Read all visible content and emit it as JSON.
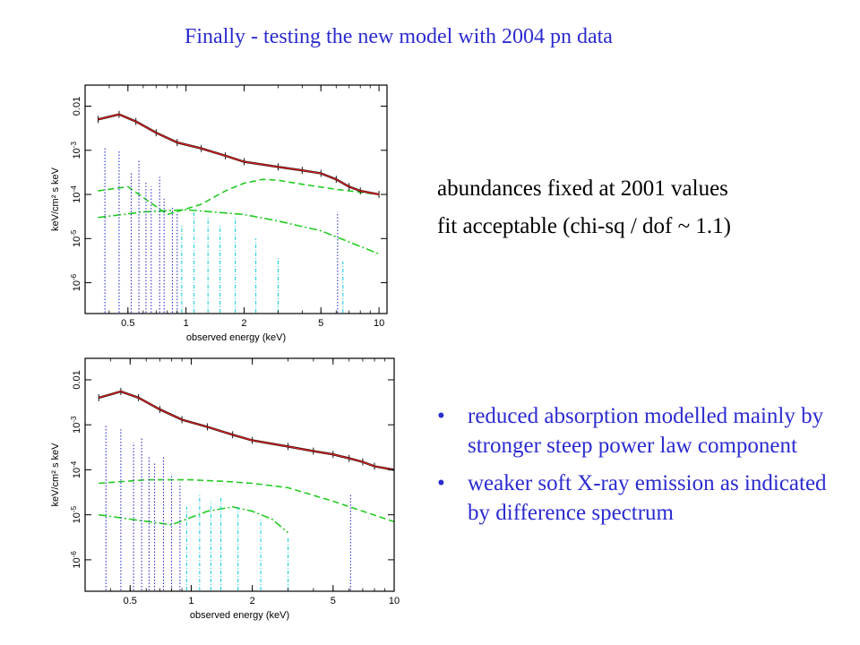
{
  "slide": {
    "title": "Finally - testing the new model with 2004 pn data",
    "fit_notes": [
      "abundances fixed at 2001 values",
      "fit acceptable (chi-sq / dof ~ 1.1)"
    ],
    "bullets": [
      "reduced absorption modelled mainly by stronger steep power law component",
      "weaker soft X-ray emission as indicated by difference spectrum"
    ],
    "bullet_glyph": "•"
  },
  "colors": {
    "data": "#000000",
    "total_model": "#e02020",
    "continuum": "#22cc22",
    "emission_lines_dotted": "#3333cc",
    "emission_lines_dashdot": "#22d0e0",
    "text_blue": "#2b2bd0"
  },
  "chart_data": [
    {
      "type": "line",
      "scale": "log-log",
      "xlabel": "observed energy (keV)",
      "ylabel": "keV/cm² s keV",
      "xlim": [
        0.3,
        11
      ],
      "ylim": [
        2e-07,
        0.03
      ],
      "xticks": [
        {
          "v": 0.5,
          "l": "0.5"
        },
        {
          "v": 1,
          "l": "1"
        },
        {
          "v": 2,
          "l": "2"
        },
        {
          "v": 5,
          "l": "5"
        },
        {
          "v": 10,
          "l": "10"
        }
      ],
      "yticks": [
        {
          "v": 0.01,
          "l": "0.01",
          "sup": ""
        },
        {
          "v": 0.001,
          "l": "10",
          "sup": "-3"
        },
        {
          "v": 0.0001,
          "l": "10",
          "sup": "-4"
        },
        {
          "v": 1e-05,
          "l": "10",
          "sup": "-5"
        },
        {
          "v": 1e-06,
          "l": "10",
          "sup": "-6"
        }
      ],
      "series": [
        {
          "role": "data",
          "x": [
            0.35,
            0.45,
            0.55,
            0.7,
            0.9,
            1.2,
            1.6,
            2.0,
            3.0,
            4.0,
            5.0,
            6.0,
            7.0,
            8.0,
            10.0
          ],
          "y": [
            0.005,
            0.0065,
            0.0045,
            0.0025,
            0.0015,
            0.0011,
            0.00075,
            0.00055,
            0.00042,
            0.00035,
            0.0003,
            0.00022,
            0.00015,
            0.00012,
            0.0001
          ]
        },
        {
          "role": "total_model",
          "x": [
            0.35,
            0.45,
            0.55,
            0.7,
            0.9,
            1.2,
            1.6,
            2.0,
            3.0,
            4.0,
            5.0,
            6.0,
            7.0,
            8.0,
            10.0
          ],
          "y": [
            0.005,
            0.0065,
            0.0045,
            0.0025,
            0.0015,
            0.0011,
            0.00075,
            0.00055,
            0.00042,
            0.00035,
            0.0003,
            0.00022,
            0.00015,
            0.00012,
            0.0001
          ]
        },
        {
          "role": "continuum",
          "x": [
            0.35,
            0.5,
            0.8,
            1.2,
            1.6,
            2.0,
            2.5,
            3.0,
            4.0,
            6.0,
            10.0
          ],
          "y": [
            0.00012,
            0.00015,
            3.5e-05,
            6e-05,
            0.00012,
            0.00018,
            0.00022,
            0.00021,
            0.00017,
            0.00013,
            0.0001
          ]
        },
        {
          "role": "continuum",
          "x": [
            0.35,
            0.6,
            1.0,
            2.0,
            3.0,
            5.0,
            10.0
          ],
          "y": [
            3e-05,
            4e-05,
            4.5e-05,
            3.5e-05,
            2.5e-05,
            1.5e-05,
            4.5e-06
          ]
        }
      ],
      "lines_dotted": [
        {
          "x": 0.38,
          "y": 0.0012
        },
        {
          "x": 0.45,
          "y": 0.001
        },
        {
          "x": 0.52,
          "y": 0.0003
        },
        {
          "x": 0.57,
          "y": 0.0006
        },
        {
          "x": 0.62,
          "y": 0.0002
        },
        {
          "x": 0.66,
          "y": 0.00015
        },
        {
          "x": 0.73,
          "y": 0.00025
        },
        {
          "x": 0.77,
          "y": 8e-05
        },
        {
          "x": 0.85,
          "y": 5e-05
        },
        {
          "x": 0.9,
          "y": 4e-05
        },
        {
          "x": 6.1,
          "y": 4e-05
        }
      ],
      "lines_dashdot": [
        {
          "x": 0.95,
          "y": 2e-05
        },
        {
          "x": 1.1,
          "y": 4e-05
        },
        {
          "x": 1.3,
          "y": 3e-05
        },
        {
          "x": 1.5,
          "y": 2e-05
        },
        {
          "x": 1.8,
          "y": 3e-05
        },
        {
          "x": 2.3,
          "y": 1e-05
        },
        {
          "x": 3.0,
          "y": 4e-06
        },
        {
          "x": 6.5,
          "y": 3e-06
        }
      ]
    },
    {
      "type": "line",
      "scale": "log-log",
      "xlabel": "observed energy (keV)",
      "ylabel": "keV/cm² s keV",
      "xlim": [
        0.3,
        10
      ],
      "ylim": [
        2e-07,
        0.03
      ],
      "xticks": [
        {
          "v": 0.5,
          "l": "0.5"
        },
        {
          "v": 1,
          "l": "1"
        },
        {
          "v": 2,
          "l": "2"
        },
        {
          "v": 5,
          "l": "5"
        },
        {
          "v": 10,
          "l": "10"
        }
      ],
      "yticks": [
        {
          "v": 0.01,
          "l": "0.01",
          "sup": ""
        },
        {
          "v": 0.001,
          "l": "10",
          "sup": "-3"
        },
        {
          "v": 0.0001,
          "l": "10",
          "sup": "-4"
        },
        {
          "v": 1e-05,
          "l": "10",
          "sup": "-5"
        },
        {
          "v": 1e-06,
          "l": "10",
          "sup": "-6"
        }
      ],
      "series": [
        {
          "role": "data",
          "x": [
            0.35,
            0.45,
            0.55,
            0.7,
            0.9,
            1.2,
            1.6,
            2.0,
            3.0,
            4.0,
            5.0,
            6.0,
            7.0,
            8.0,
            10.0
          ],
          "y": [
            0.004,
            0.0055,
            0.004,
            0.0022,
            0.0013,
            0.0009,
            0.0006,
            0.00045,
            0.00033,
            0.00026,
            0.00022,
            0.00018,
            0.00015,
            0.00012,
            0.0001
          ]
        },
        {
          "role": "total_model",
          "x": [
            0.35,
            0.45,
            0.55,
            0.7,
            0.9,
            1.2,
            1.6,
            2.0,
            3.0,
            4.0,
            5.0,
            6.0,
            7.0,
            8.0,
            10.0
          ],
          "y": [
            0.004,
            0.0055,
            0.004,
            0.0022,
            0.0013,
            0.0009,
            0.0006,
            0.00045,
            0.00033,
            0.00026,
            0.00022,
            0.00018,
            0.00015,
            0.00012,
            0.0001
          ]
        },
        {
          "role": "continuum",
          "x": [
            0.35,
            0.6,
            1.0,
            1.5,
            2.0,
            3.0,
            5.0,
            10.0
          ],
          "y": [
            5e-05,
            6e-05,
            6e-05,
            5.5e-05,
            5e-05,
            4e-05,
            2e-05,
            7e-06
          ]
        },
        {
          "role": "continuum",
          "x": [
            0.35,
            0.5,
            0.8,
            1.2,
            1.6,
            2.0,
            2.5,
            3.0
          ],
          "y": [
            1e-05,
            8e-06,
            6e-06,
            1.2e-05,
            1.5e-05,
            1.2e-05,
            8e-06,
            4e-06
          ]
        }
      ],
      "lines_dotted": [
        {
          "x": 0.38,
          "y": 0.001
        },
        {
          "x": 0.45,
          "y": 0.0008
        },
        {
          "x": 0.52,
          "y": 0.0004
        },
        {
          "x": 0.57,
          "y": 0.0005
        },
        {
          "x": 0.62,
          "y": 0.0002
        },
        {
          "x": 0.66,
          "y": 0.00015
        },
        {
          "x": 0.73,
          "y": 0.0002
        },
        {
          "x": 0.8,
          "y": 8e-05
        },
        {
          "x": 0.88,
          "y": 5e-05
        },
        {
          "x": 6.1,
          "y": 3e-05
        }
      ],
      "lines_dashdot": [
        {
          "x": 0.95,
          "y": 1.5e-05
        },
        {
          "x": 1.1,
          "y": 3e-05
        },
        {
          "x": 1.25,
          "y": 2e-05
        },
        {
          "x": 1.4,
          "y": 2.5e-05
        },
        {
          "x": 1.7,
          "y": 1.5e-05
        },
        {
          "x": 2.2,
          "y": 8e-06
        },
        {
          "x": 3.0,
          "y": 3e-06
        }
      ]
    }
  ]
}
